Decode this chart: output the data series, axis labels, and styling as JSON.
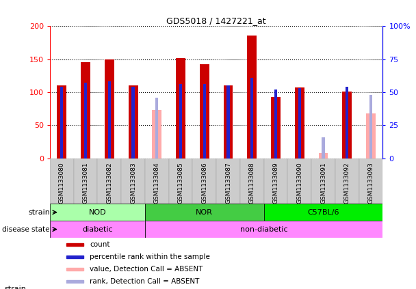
{
  "title": "GDS5018 / 1427221_at",
  "samples": [
    "GSM1133080",
    "GSM1133081",
    "GSM1133082",
    "GSM1133083",
    "GSM1133084",
    "GSM1133085",
    "GSM1133086",
    "GSM1133087",
    "GSM1133088",
    "GSM1133089",
    "GSM1133090",
    "GSM1133091",
    "GSM1133092",
    "GSM1133093"
  ],
  "count_values": [
    110,
    145,
    150,
    110,
    null,
    152,
    142,
    110,
    186,
    93,
    107,
    null,
    101,
    null
  ],
  "rank_values": [
    54,
    57,
    58,
    54,
    null,
    56,
    56,
    55,
    61,
    52,
    53,
    null,
    54,
    null
  ],
  "absent_count": [
    null,
    null,
    null,
    null,
    73,
    null,
    null,
    null,
    null,
    null,
    null,
    8,
    null,
    68
  ],
  "absent_rank": [
    null,
    null,
    null,
    null,
    46,
    null,
    null,
    null,
    null,
    null,
    null,
    16,
    null,
    48
  ],
  "strain_groups": [
    {
      "label": "NOD",
      "start": 0,
      "end": 3,
      "color": "#AAFFAA"
    },
    {
      "label": "NOR",
      "start": 4,
      "end": 8,
      "color": "#44CC44"
    },
    {
      "label": "C57BL/6",
      "start": 9,
      "end": 13,
      "color": "#00EE00"
    }
  ],
  "disease_groups": [
    {
      "label": "diabetic",
      "start": 0,
      "end": 3,
      "color": "#FF88FF"
    },
    {
      "label": "non-diabetic",
      "start": 4,
      "end": 13,
      "color": "#FF88FF"
    }
  ],
  "ylim_left": [
    0,
    200
  ],
  "ylim_right": [
    0,
    100
  ],
  "yticks_left": [
    0,
    50,
    100,
    150,
    200
  ],
  "ytick_labels_left": [
    "0",
    "50",
    "100",
    "150",
    "200"
  ],
  "yticks_right": [
    0,
    25,
    50,
    75,
    100
  ],
  "ytick_labels_right": [
    "0",
    "25",
    "50",
    "75",
    "100%"
  ],
  "bar_color_red": "#CC0000",
  "bar_color_blue": "#2222CC",
  "bar_color_pink": "#FFAAAA",
  "bar_color_light_blue": "#AAAADD",
  "legend_items": [
    {
      "color": "#CC0000",
      "label": "count"
    },
    {
      "color": "#2222CC",
      "label": "percentile rank within the sample"
    },
    {
      "color": "#FFAAAA",
      "label": "value, Detection Call = ABSENT"
    },
    {
      "color": "#AAAADD",
      "label": "rank, Detection Call = ABSENT"
    }
  ]
}
